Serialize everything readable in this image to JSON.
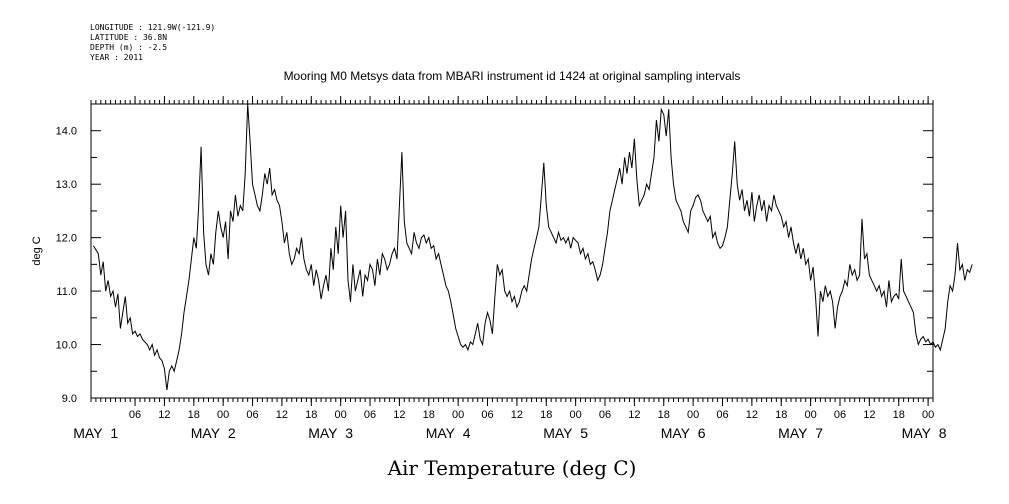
{
  "header": {
    "meta_lines": [
      "LONGITUDE : 121.9W(-121.9)",
      "LATITUDE : 36.8N",
      "DEPTH (m) : -2.5",
      "YEAR : 2011"
    ],
    "title": "Mooring M0 Metsys data from MBARI instrument id 1424 at original sampling intervals"
  },
  "chart_data": {
    "type": "line",
    "title": "Mooring M0 Metsys data from MBARI instrument id 1424 at original sampling intervals",
    "xlabel": "Air Temperature (deg C)",
    "ylabel": "deg C",
    "ylim": [
      9.0,
      14.5
    ],
    "yticks": [
      9.0,
      10.0,
      11.0,
      12.0,
      13.0,
      14.0
    ],
    "xlim": [
      "2011-04-30 21:00",
      "2011-05-08 01:00"
    ],
    "x_hour_ticks": [
      "06",
      "12",
      "18",
      "00",
      "06",
      "12",
      "18",
      "00",
      "06",
      "12",
      "18",
      "00",
      "06",
      "12",
      "18",
      "00",
      "06",
      "12",
      "18",
      "00",
      "06",
      "12",
      "18",
      "00",
      "06",
      "12",
      "18",
      "00"
    ],
    "x_day_labels": [
      "MAY 1",
      "MAY 2",
      "MAY 3",
      "MAY 4",
      "MAY 5",
      "MAY 6",
      "MAY 7",
      "MAY 8"
    ],
    "grid": false,
    "legend": "none",
    "series": [
      {
        "x_hours_since_2011-05-01T00": [
          -2.5,
          -1.5,
          -1,
          -0.5,
          0,
          0.5,
          1,
          1.5,
          2,
          2.5,
          3,
          3.5,
          4,
          4.5,
          5,
          5.5,
          6,
          6.5,
          7,
          7.5,
          8,
          8.5,
          9,
          9.5,
          10,
          10.5,
          11,
          11.5,
          12,
          12.5,
          13,
          13.5,
          14,
          14.5,
          15,
          15.5,
          16,
          16.5,
          17,
          17.5,
          18,
          18.5,
          19,
          19.5,
          20,
          20.5,
          21,
          21.5,
          22,
          22.5,
          23,
          23.5,
          24,
          24.5,
          25,
          25.5,
          26,
          26.5,
          27,
          27.5,
          28,
          28.5,
          29,
          29.5,
          30,
          30.5,
          31,
          31.5,
          32,
          32.5,
          33,
          33.5,
          34,
          34.5,
          35,
          35.5,
          36,
          36.5,
          37,
          37.5,
          38,
          38.5,
          39,
          39.5,
          40,
          40.5,
          41,
          41.5,
          42,
          42.5,
          43,
          43.5,
          44,
          44.5,
          45,
          45.5,
          46,
          46.5,
          47,
          47.5,
          48,
          48.5,
          49,
          49.5,
          50,
          50.5,
          51,
          51.5,
          52,
          52.5,
          53,
          53.5,
          54,
          54.5,
          55,
          55.5,
          56,
          56.5,
          57,
          57.5,
          58,
          58.5,
          59,
          59.5,
          60,
          60.5,
          61,
          61.5,
          62,
          62.5,
          63,
          63.5,
          64,
          64.5,
          65,
          65.5,
          66,
          66.5,
          67,
          67.5,
          68,
          68.5,
          69,
          69.5,
          70,
          70.5,
          71,
          71.5,
          72,
          72.5,
          73,
          73.5,
          74,
          74.5,
          75,
          75.5,
          76,
          76.5,
          77,
          77.5,
          78,
          78.5,
          79,
          79.5,
          80,
          80.5,
          81,
          81.5,
          82,
          82.5,
          83,
          83.5,
          84,
          84.5,
          85,
          85.5,
          86,
          86.5,
          87,
          87.5,
          88,
          88.5,
          89,
          89.5,
          90,
          90.5,
          91,
          91.5,
          92,
          92.5,
          93,
          93.5,
          94,
          94.5,
          95,
          95.5,
          96,
          96.5,
          97,
          97.5,
          98,
          98.5,
          99,
          99.5,
          100,
          100.5,
          101,
          101.5,
          102,
          102.5,
          103,
          103.5,
          104,
          104.5,
          105,
          105.5,
          106,
          106.5,
          107,
          107.5,
          108,
          108.5,
          109,
          109.5,
          110,
          110.5,
          111,
          111.5,
          112,
          112.5,
          113,
          113.5,
          114,
          114.5,
          115,
          115.5,
          116,
          116.5,
          117,
          117.5,
          118,
          118.5,
          119,
          119.5,
          120,
          120.5,
          121,
          121.5,
          122,
          122.5,
          123,
          123.5,
          124,
          124.5,
          125,
          125.5,
          126,
          126.5,
          127,
          127.5,
          128,
          128.5,
          129,
          129.5,
          130,
          130.5,
          131,
          131.5,
          132,
          132.5,
          133,
          133.5,
          134,
          134.5,
          135,
          135.5,
          136,
          136.5,
          137,
          137.5,
          138,
          138.5,
          139,
          139.5,
          140,
          140.5,
          141,
          141.5,
          142,
          142.5,
          143,
          143.5,
          144,
          144.5,
          145,
          145.5,
          146,
          146.5,
          147,
          147.5,
          148,
          148.5,
          149,
          149.5,
          150,
          150.5,
          151,
          151.5,
          152,
          152.5,
          153,
          153.5,
          154,
          154.5,
          155,
          155.5,
          156,
          156.5,
          157,
          157.5,
          158,
          158.5,
          159,
          159.5,
          160,
          160.5,
          161,
          161.5,
          162,
          162.5,
          163,
          163.5,
          164,
          164.5,
          165,
          165.5,
          166,
          166.5,
          167,
          167.5,
          168,
          168.5,
          169,
          169.5,
          170,
          170.5,
          171,
          171.5,
          172,
          172.5,
          173,
          173.5,
          174,
          174.5,
          175,
          175.5,
          176,
          176.5,
          177
        ],
        "y": [
          11.85,
          11.7,
          11.3,
          11.55,
          11.0,
          11.2,
          10.9,
          11.0,
          10.7,
          10.95,
          10.3,
          10.6,
          10.9,
          10.4,
          10.5,
          10.2,
          10.25,
          10.15,
          10.2,
          10.1,
          10.05,
          10.0,
          9.9,
          10.0,
          9.8,
          9.9,
          9.75,
          9.7,
          9.55,
          9.15,
          9.5,
          9.6,
          9.5,
          9.7,
          9.9,
          10.2,
          10.6,
          10.9,
          11.2,
          11.6,
          12.0,
          11.8,
          12.6,
          13.7,
          12.1,
          11.5,
          11.3,
          11.7,
          11.5,
          12.1,
          12.5,
          12.2,
          12.0,
          12.3,
          11.6,
          12.5,
          12.3,
          12.8,
          12.4,
          12.6,
          12.5,
          13.2,
          14.5,
          13.8,
          13.0,
          12.8,
          12.6,
          12.5,
          12.8,
          13.2,
          13.0,
          13.3,
          12.8,
          12.9,
          12.7,
          12.6,
          12.3,
          11.9,
          12.1,
          11.7,
          11.5,
          11.6,
          11.8,
          11.7,
          12.0,
          11.6,
          11.4,
          11.3,
          11.5,
          11.1,
          11.4,
          11.2,
          10.85,
          11.1,
          11.3,
          11.0,
          11.8,
          11.4,
          12.2,
          11.7,
          12.6,
          12.0,
          12.5,
          11.2,
          10.8,
          11.5,
          11.0,
          11.2,
          11.4,
          10.9,
          11.3,
          11.2,
          11.5,
          11.4,
          11.1,
          11.6,
          11.3,
          11.7,
          11.6,
          11.4,
          11.5,
          11.7,
          11.8,
          11.6,
          12.6,
          13.6,
          12.3,
          11.9,
          11.8,
          11.7,
          12.1,
          11.9,
          11.8,
          12.0,
          12.05,
          11.9,
          12.0,
          11.8,
          11.85,
          11.6,
          11.7,
          11.5,
          11.3,
          11.1,
          11.0,
          10.8,
          10.55,
          10.3,
          10.15,
          10.0,
          9.95,
          10.0,
          9.9,
          10.05,
          10.0,
          10.2,
          10.4,
          10.1,
          10.0,
          10.4,
          10.6,
          10.45,
          10.2,
          10.9,
          11.5,
          11.3,
          11.4,
          11.0,
          10.9,
          11.0,
          10.8,
          10.9,
          10.7,
          10.8,
          11.0,
          11.1,
          11.0,
          11.3,
          11.6,
          11.8,
          12.0,
          12.2,
          12.8,
          13.4,
          12.6,
          12.2,
          12.1,
          12.0,
          11.9,
          12.1,
          11.95,
          12.0,
          11.9,
          12.0,
          11.8,
          12.0,
          11.95,
          11.9,
          11.7,
          11.8,
          11.6,
          11.7,
          11.5,
          11.55,
          11.4,
          11.2,
          11.3,
          11.5,
          11.8,
          12.1,
          12.5,
          12.7,
          12.9,
          13.1,
          13.3,
          13.0,
          13.5,
          13.2,
          13.6,
          13.3,
          13.85,
          13.1,
          12.6,
          12.7,
          12.8,
          13.0,
          12.9,
          13.2,
          13.5,
          14.2,
          13.8,
          14.4,
          14.3,
          13.9,
          14.4,
          13.5,
          13.0,
          12.7,
          12.6,
          12.5,
          12.3,
          12.2,
          12.1,
          12.5,
          12.6,
          12.75,
          12.8,
          12.7,
          12.5,
          12.4,
          12.3,
          12.4,
          12.0,
          12.1,
          11.9,
          11.8,
          11.85,
          12.0,
          12.2,
          12.7,
          13.2,
          13.8,
          13.0,
          12.7,
          12.9,
          12.5,
          12.7,
          12.4,
          12.85,
          12.3,
          12.6,
          12.8,
          12.5,
          12.7,
          12.3,
          12.6,
          12.5,
          12.8,
          12.6,
          12.5,
          12.4,
          12.2,
          12.3,
          12.0,
          12.2,
          11.9,
          11.7,
          11.9,
          11.6,
          11.8,
          11.5,
          11.6,
          11.2,
          11.45,
          10.9,
          10.15,
          11.0,
          10.8,
          11.1,
          10.9,
          11.0,
          10.8,
          10.3,
          10.7,
          10.9,
          11.0,
          11.2,
          11.1,
          11.5,
          11.3,
          11.4,
          11.2,
          11.3,
          12.35,
          11.6,
          11.7,
          11.3,
          11.2,
          11.1,
          11.0,
          11.1,
          10.9,
          11.0,
          10.7,
          11.2,
          10.8,
          10.9,
          10.95,
          10.85,
          11.6,
          11.0,
          10.9,
          10.8,
          10.7,
          10.6,
          10.2,
          10.0,
          10.1,
          10.15,
          10.05,
          10.1,
          10.0,
          10.05,
          9.95,
          10.0,
          9.9,
          10.1,
          10.3,
          10.8,
          11.1,
          11.0,
          11.3,
          11.9,
          11.4,
          11.5,
          11.2,
          11.4,
          11.35,
          11.5,
          11.2,
          11.3,
          11.2,
          11.4,
          11.3,
          11.5,
          11.6,
          11.7,
          11.65,
          11.55,
          11.45,
          11.4
        ]
      }
    ]
  }
}
